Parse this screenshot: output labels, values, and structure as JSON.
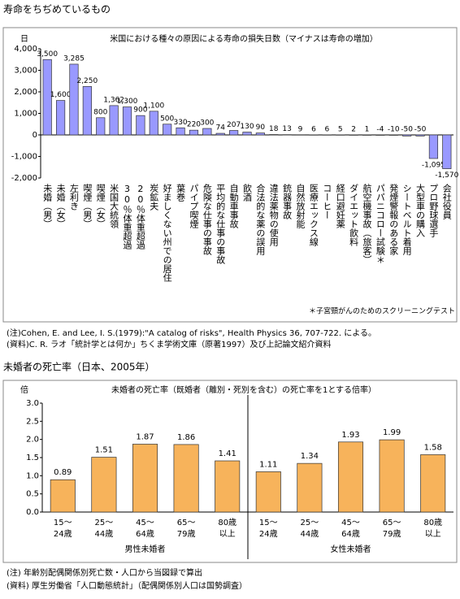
{
  "heading": "寿命をちぢめているもの",
  "chart_data": [
    {
      "type": "bar",
      "title": "米国における種々の原因による寿命の損失日数（マイナスは寿命の増加）",
      "y_label": "日",
      "categories": [
        "未婚（男）",
        "未婚（女）",
        "左利き",
        "喫煙（男）",
        "喫煙（女）",
        "米国大統領",
        "30％体重超過",
        "20％体重超過",
        "炭鉱夫",
        "好ましくない州での居住",
        "葉巻",
        "パイプ喫煙",
        "危険な仕事の事故",
        "平均的な仕事の事故",
        "自動車事故",
        "飲酒",
        "合法的な薬の誤用",
        "違法薬物の使用",
        "銃器事故",
        "自然放射能",
        "医療エックス線",
        "コーヒー",
        "経口避妊薬",
        "ダイエット飲料",
        "航空機事故（旅客）",
        "パパニコロー試験＊",
        "発煙警報のある家",
        "シートベルト着用",
        "大型車の購入",
        "プロ野球選手",
        "会社役員"
      ],
      "values": [
        3500,
        1600,
        3285,
        2250,
        800,
        1362,
        1300,
        900,
        1100,
        500,
        330,
        220,
        300,
        74,
        207,
        130,
        90,
        18,
        13,
        9,
        6,
        6,
        5,
        2,
        1,
        -4,
        -10,
        -50,
        -50,
        -1095,
        -1570
      ],
      "value_labels": [
        "3,500",
        "1,600",
        "3,285",
        "2,250",
        "800",
        "1,362",
        "1,300",
        "900",
        "1,100",
        "500",
        "330",
        "220",
        "300",
        "74",
        "207",
        "130",
        "90",
        "18",
        "13",
        "9",
        "6",
        "6",
        "5",
        "2",
        "1",
        "-4",
        "-10",
        "-50",
        "-50",
        "-1,095",
        "-1,570"
      ],
      "color": "#9999ff",
      "ylim": [
        -2000,
        4000
      ],
      "yticks": [
        {
          "value": 4000,
          "label": "4,000"
        },
        {
          "value": 3000,
          "label": "3,000"
        },
        {
          "value": 2000,
          "label": "2,000"
        },
        {
          "value": 1000,
          "label": "1,000"
        },
        0,
        {
          "value": -1000,
          "label": "-1,000"
        },
        {
          "value": -2000,
          "label": "-2,000"
        }
      ],
      "footnote": "＊子宮頸がんのためのスクリーニングテスト"
    },
    {
      "type": "grouped-bar",
      "title": "未婚者の死亡率（既婚者（離別・死別を含む）の死亡率を1とする倍率）",
      "y_label": "倍",
      "groups": [
        {
          "name": "男性未婚者",
          "categories": [
            [
              "15〜",
              "24歳"
            ],
            [
              "25〜",
              "44歳"
            ],
            [
              "45〜",
              "64歳"
            ],
            [
              "65〜",
              "79歳"
            ],
            [
              "80歳",
              "以上"
            ]
          ],
          "values": [
            0.89,
            1.51,
            1.87,
            1.86,
            1.41
          ]
        },
        {
          "name": "女性未婚者",
          "categories": [
            [
              "15〜",
              "24歳"
            ],
            [
              "25〜",
              "44歳"
            ],
            [
              "45〜",
              "64歳"
            ],
            [
              "65〜",
              "79歳"
            ],
            [
              "80歳",
              "以上"
            ]
          ],
          "values": [
            1.11,
            1.34,
            1.93,
            1.99,
            1.58
          ]
        }
      ],
      "color": "#f7b35b",
      "ylim": [
        0,
        3
      ],
      "yticks": [
        {
          "value": 0,
          "label": "0.0"
        },
        0.5,
        {
          "value": 1,
          "label": "1.0"
        },
        1.5,
        {
          "value": 2,
          "label": "2.0"
        },
        2.5,
        {
          "value": 3,
          "label": "3.0"
        }
      ]
    }
  ],
  "notes1": [
    "(注)Cohen, E. and Lee, I. S.(1979):\"A catalog of risks\", Health Physics 36, 707-722. による。",
    "(資料)C. R. ラオ「統計学とは何か」ちくま学術文庫（原著1997）及び上記論文紹介資料"
  ],
  "section_title": "未婚者の死亡率（日本、2005年）",
  "notes2": [
    "(注) 年齢別配偶関係別死亡数・人口から当図録で算出",
    "(資料) 厚生労働省「人口動態統計」（配偶関係別人口は国勢調査）"
  ]
}
